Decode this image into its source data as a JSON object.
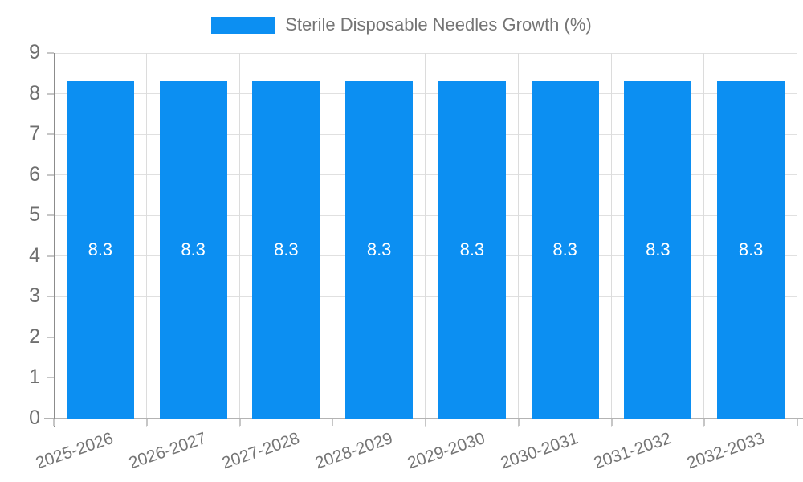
{
  "legend": {
    "label": "Sterile Disposable Needles Growth (%)"
  },
  "chart_data": {
    "type": "bar",
    "title": "Sterile Disposable Needles Growth (%)",
    "xlabel": "",
    "ylabel": "",
    "categories": [
      "2025-2026",
      "2026-2027",
      "2027-2028",
      "2028-2029",
      "2029-2030",
      "2030-2031",
      "2031-2032",
      "2032-2033"
    ],
    "values": [
      8.3,
      8.3,
      8.3,
      8.3,
      8.3,
      8.3,
      8.3,
      8.3
    ],
    "value_labels": [
      "8.3",
      "8.3",
      "8.3",
      "8.3",
      "8.3",
      "8.3",
      "8.3",
      "8.3"
    ],
    "ylim": [
      0,
      9
    ],
    "yticks": [
      0,
      1,
      2,
      3,
      4,
      5,
      6,
      7,
      8,
      9
    ],
    "grid": true,
    "legend_position": "top",
    "bar_color": "#0c8ff2",
    "value_label_color": "#ffffff"
  }
}
